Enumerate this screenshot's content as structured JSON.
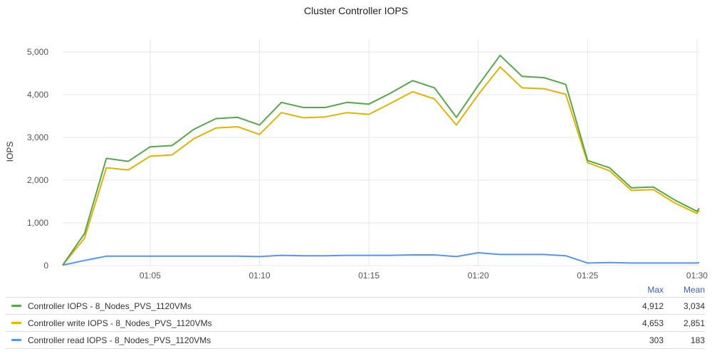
{
  "chart_data": {
    "type": "line",
    "title": "Cluster Controller IOPS",
    "ylabel": "IOPS",
    "xlabel": "",
    "ylim": [
      0,
      5300
    ],
    "yticks": [
      0,
      1000,
      2000,
      3000,
      4000,
      5000
    ],
    "ytick_labels": [
      "0",
      "1,000",
      "2,000",
      "3,000",
      "4,000",
      "5,000"
    ],
    "xticks": [
      "01:05",
      "01:10",
      "01:15",
      "01:20",
      "01:25",
      "01:30"
    ],
    "xtick_minutes": [
      5,
      10,
      15,
      20,
      25,
      30
    ],
    "x_minutes": [
      1,
      2,
      3,
      4,
      5,
      6,
      7,
      8,
      9,
      10,
      11,
      12,
      13,
      14,
      15,
      16,
      17,
      18,
      19,
      20,
      21,
      22,
      23,
      24,
      25,
      26,
      27,
      28,
      29,
      30,
      30.1
    ],
    "grid": true,
    "legend_position": "bottom",
    "legend_headers": {
      "max": "Max",
      "mean": "Mean"
    },
    "series": [
      {
        "name": "Controller IOPS - 8_Nodes_PVS_1120VMs",
        "color": "#56a64b",
        "max": "4,912",
        "mean": "3,034",
        "values": [
          10,
          750,
          2510,
          2440,
          2780,
          2810,
          3190,
          3440,
          3470,
          3290,
          3820,
          3700,
          3700,
          3820,
          3780,
          4040,
          4330,
          4160,
          3470,
          4220,
          4920,
          4430,
          4400,
          4240,
          2460,
          2290,
          1820,
          1840,
          1530,
          1270,
          1340
        ]
      },
      {
        "name": "Controller write IOPS - 8_Nodes_PVS_1120VMs",
        "color": "#e0b400",
        "max": "4,653",
        "mean": "2,851",
        "values": [
          10,
          640,
          2290,
          2240,
          2560,
          2590,
          2970,
          3220,
          3250,
          3070,
          3580,
          3460,
          3480,
          3580,
          3540,
          3800,
          4070,
          3900,
          3290,
          4000,
          4650,
          4160,
          4140,
          4010,
          2410,
          2220,
          1760,
          1780,
          1460,
          1220,
          1290
        ]
      },
      {
        "name": "Controller read IOPS - 8_Nodes_PVS_1120VMs",
        "color": "#5794f2",
        "max": "303",
        "mean": "183",
        "values": [
          10,
          120,
          220,
          220,
          220,
          220,
          220,
          220,
          220,
          210,
          240,
          230,
          230,
          240,
          240,
          240,
          250,
          250,
          210,
          300,
          260,
          260,
          260,
          230,
          60,
          70,
          60,
          60,
          60,
          60,
          70
        ]
      }
    ]
  }
}
